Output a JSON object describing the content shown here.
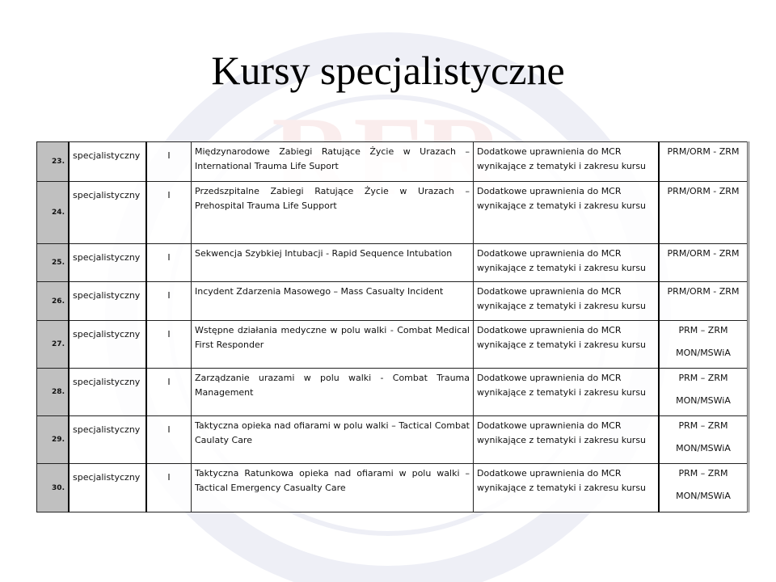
{
  "title": "Kursy specjalistyczne",
  "watermark": {
    "text": "Fundacja rozwoju Ratownictwa w Polsce",
    "logo": "RFR"
  },
  "rows": [
    {
      "num": "23.",
      "type": "specjalistyczny",
      "level": "I",
      "name": "Międzynarodowe Zabiegi Ratujące Życie w Urazach – International Trauma Life Suport",
      "perm": "Dodatkowe uprawnienia do MCR wynikające z tematyki i zakresu kursu",
      "unit": [
        "PRM/ORM - ZRM"
      ]
    },
    {
      "num": "24.",
      "type": "specjalistyczny",
      "level": "I",
      "name": "Przedszpitalne Zabiegi Ratujące Życie w Urazach – Prehospital Trauma Life Support",
      "perm": "Dodatkowe uprawnienia do MCR wynikające z tematyki i zakresu kursu",
      "unit": [
        "PRM/ORM - ZRM"
      ]
    },
    {
      "num": "25.",
      "type": "specjalistyczny",
      "level": "I",
      "name": "Sekwencja Szybkiej Intubacji - Rapid Sequence Intubation",
      "perm": "Dodatkowe uprawnienia do MCR wynikające z tematyki i zakresu kursu",
      "unit": [
        "PRM/ORM - ZRM"
      ]
    },
    {
      "num": "26.",
      "type": "specjalistyczny",
      "level": "I",
      "name": "Incydent Zdarzenia Masowego – Mass Casualty Incident",
      "perm": "Dodatkowe uprawnienia do MCR wynikające z tematyki i zakresu kursu",
      "unit": [
        "PRM/ORM - ZRM"
      ]
    },
    {
      "num": "27.",
      "type": "specjalistyczny",
      "level": "I",
      "name": "Wstępne działania medyczne w polu walki - Combat Medical First Responder",
      "perm": "Dodatkowe uprawnienia do MCR wynikające z tematyki i zakresu kursu",
      "unit": [
        "PRM – ZRM",
        "MON/MSWiA"
      ]
    },
    {
      "num": "28.",
      "type": "specjalistyczny",
      "level": "I",
      "name": "Zarządzanie urazami w polu walki - Combat Trauma Management",
      "perm": "Dodatkowe uprawnienia do MCR wynikające z tematyki i zakresu kursu",
      "unit": [
        "PRM – ZRM",
        "MON/MSWiA"
      ]
    },
    {
      "num": "29.",
      "type": "specjalistyczny",
      "level": "I",
      "name": "Taktyczna opieka nad ofiarami w polu walki – Tactical Combat Caulaty Care",
      "perm": "Dodatkowe uprawnienia do MCR wynikające z tematyki i zakresu kursu",
      "unit": [
        "PRM – ZRM",
        "MON/MSWiA"
      ]
    },
    {
      "num": "30.",
      "type": "specjalistyczny",
      "level": "I",
      "name": "Taktyczna Ratunkowa opieka nad ofiarami w polu walki – Tactical Emergency Casualty Care",
      "perm": "Dodatkowe uprawnienia do MCR wynikające z tematyki i zakresu kursu",
      "unit": [
        "PRM – ZRM",
        "MON/MSWiA"
      ]
    }
  ]
}
